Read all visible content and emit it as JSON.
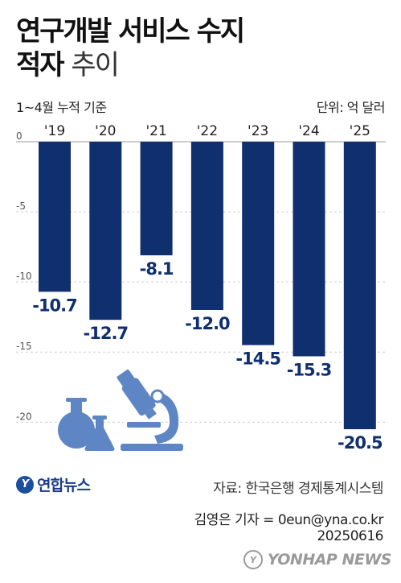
{
  "header": {
    "title_line1": "연구개발 서비스 수지",
    "title_line2_bold": "적자",
    "title_line2_light": "추이",
    "note": "1~4월 누적 기준",
    "unit": "단위: 억 달러"
  },
  "chart_data": {
    "type": "bar",
    "categories": [
      "'19",
      "'20",
      "'21",
      "'22",
      "'23",
      "'24",
      "'25"
    ],
    "values": [
      -10.7,
      -12.7,
      -8.1,
      -12.0,
      -14.5,
      -15.3,
      -20.5
    ],
    "value_labels": [
      "-10.7",
      "-12.7",
      "-8.1",
      "-12.0",
      "-14.5",
      "-15.3",
      "-20.5"
    ],
    "yticks": [
      0,
      -5,
      -10,
      -15,
      -20
    ],
    "ytick_labels": [
      "0",
      "-5",
      "-10",
      "-15",
      "-20"
    ],
    "ylim": [
      -20.9,
      0
    ],
    "grid": true,
    "bar_color": "#0f2f6e",
    "label_color": "#0f2f6e",
    "grid_color": "#cfcfcf"
  },
  "footer": {
    "brand": "연합뉴스",
    "source": "자료: 한국은행 경제통계시스템",
    "credit_line1": "김영은 기자 = 0eun@yna.co.kr",
    "credit_line2": "20250616",
    "watermark": "YONHAP NEWS"
  },
  "colors": {
    "illustration": "#5f86c4"
  }
}
